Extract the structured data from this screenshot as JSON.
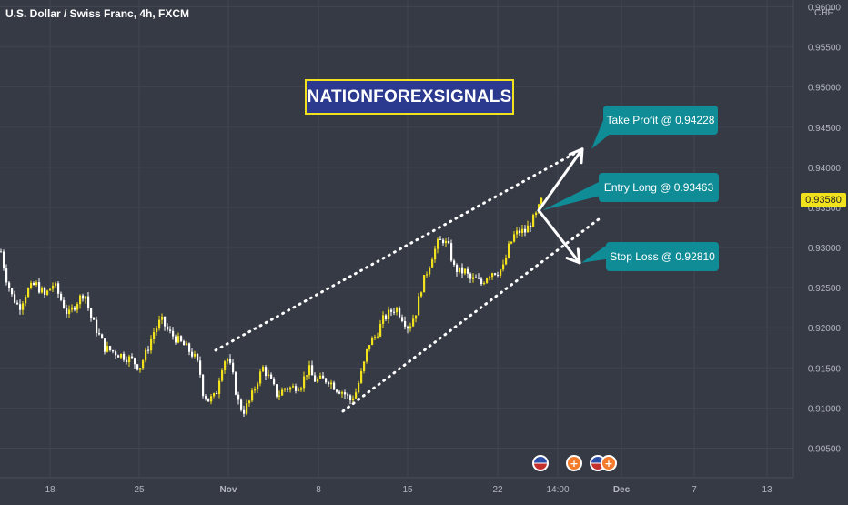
{
  "header": {
    "symbol_title": "U.S. Dollar / Swiss Franc, 4h, FXCM"
  },
  "watermark": {
    "brand": "NATIONFOREXSIGNALS"
  },
  "annotations": {
    "take_profit": "Take Profit @ 0.94228",
    "entry": "Entry Long @ 0.93463",
    "stop_loss": "Stop Loss @ 0.92810"
  },
  "price_axis": {
    "currency": "CHF",
    "last_price": "0.93580",
    "ticks": [
      "0.96000",
      "0.95500",
      "0.95000",
      "0.94500",
      "0.94000",
      "0.93500",
      "0.93000",
      "0.92500",
      "0.92000",
      "0.91500",
      "0.91000",
      "0.90500"
    ]
  },
  "time_axis": {
    "ticks": [
      "18",
      "25",
      "Nov",
      "8",
      "15",
      "22",
      "14:00",
      "Dec",
      "7",
      "13"
    ]
  },
  "colors": {
    "background": "#363a45",
    "candle_up": "#f2e21d",
    "candle_down": "#ffffff",
    "callout": "#0f8c96",
    "brand_bg": "#2b3a8f",
    "brand_border": "#f2e21d",
    "event_icon": "#f37b2b"
  },
  "icons": [
    "us-flag-icon",
    "event-plus-icon",
    "event-plus-icon",
    "us-flag-icon",
    "event-plus-icon"
  ],
  "chart_data": {
    "type": "candlestick",
    "title": "U.S. Dollar / Swiss Franc, 4h, FXCM",
    "ylim": [
      0.9025,
      0.9605
    ],
    "y_ticks": [
      0.905,
      0.91,
      0.915,
      0.92,
      0.925,
      0.93,
      0.935,
      0.94,
      0.945,
      0.95,
      0.955,
      0.96
    ],
    "x_tick_labels": [
      "18",
      "25",
      "Nov",
      "8",
      "15",
      "22",
      "14:00",
      "Dec",
      "7",
      "13"
    ],
    "grid": true,
    "last_price": 0.9358,
    "close_path": [
      [
        0,
        0.9295
      ],
      [
        5,
        0.9265
      ],
      [
        12,
        0.924
      ],
      [
        20,
        0.9225
      ],
      [
        28,
        0.9245
      ],
      [
        38,
        0.9255
      ],
      [
        48,
        0.924
      ],
      [
        58,
        0.9255
      ],
      [
        66,
        0.9235
      ],
      [
        74,
        0.9215
      ],
      [
        82,
        0.923
      ],
      [
        92,
        0.9245
      ],
      [
        98,
        0.9215
      ],
      [
        106,
        0.9195
      ],
      [
        114,
        0.9175
      ],
      [
        124,
        0.917
      ],
      [
        134,
        0.9165
      ],
      [
        144,
        0.916
      ],
      [
        152,
        0.915
      ],
      [
        160,
        0.917
      ],
      [
        168,
        0.9195
      ],
      [
        176,
        0.921
      ],
      [
        184,
        0.9195
      ],
      [
        194,
        0.9185
      ],
      [
        204,
        0.9175
      ],
      [
        212,
        0.9165
      ],
      [
        218,
        0.915
      ],
      [
        222,
        0.912
      ],
      [
        228,
        0.911
      ],
      [
        236,
        0.9115
      ],
      [
        242,
        0.915
      ],
      [
        248,
        0.9165
      ],
      [
        254,
        0.9145
      ],
      [
        260,
        0.911
      ],
      [
        266,
        0.9095
      ],
      [
        274,
        0.911
      ],
      [
        282,
        0.9135
      ],
      [
        288,
        0.915
      ],
      [
        296,
        0.9135
      ],
      [
        304,
        0.9115
      ],
      [
        312,
        0.9125
      ],
      [
        320,
        0.9125
      ],
      [
        330,
        0.913
      ],
      [
        338,
        0.915
      ],
      [
        344,
        0.9135
      ],
      [
        352,
        0.9135
      ],
      [
        360,
        0.9135
      ],
      [
        368,
        0.9125
      ],
      [
        376,
        0.912
      ],
      [
        384,
        0.911
      ],
      [
        390,
        0.912
      ],
      [
        398,
        0.915
      ],
      [
        404,
        0.918
      ],
      [
        412,
        0.919
      ],
      [
        420,
        0.921
      ],
      [
        428,
        0.922
      ],
      [
        434,
        0.9225
      ],
      [
        440,
        0.9215
      ],
      [
        448,
        0.92
      ],
      [
        456,
        0.922
      ],
      [
        462,
        0.925
      ],
      [
        468,
        0.927
      ],
      [
        474,
        0.929
      ],
      [
        480,
        0.9305
      ],
      [
        486,
        0.931
      ],
      [
        492,
        0.93
      ],
      [
        498,
        0.9275
      ],
      [
        504,
        0.927
      ],
      [
        510,
        0.927
      ],
      [
        516,
        0.926
      ],
      [
        522,
        0.926
      ],
      [
        528,
        0.9255
      ],
      [
        534,
        0.9265
      ],
      [
        540,
        0.927
      ],
      [
        546,
        0.927
      ],
      [
        552,
        0.9275
      ],
      [
        558,
        0.93
      ],
      [
        564,
        0.9315
      ],
      [
        570,
        0.932
      ],
      [
        576,
        0.932
      ],
      [
        582,
        0.933
      ],
      [
        588,
        0.934
      ],
      [
        594,
        0.9358
      ]
    ],
    "channel": {
      "upper": {
        "from": {
          "t": 237,
          "price": 0.9172
        },
        "to": {
          "t": 639,
          "price": 0.9422
        }
      },
      "lower": {
        "from": {
          "t": 377,
          "price": 0.9096
        },
        "to": {
          "t": 660,
          "price": 0.9337
        }
      }
    },
    "trade_levels": [
      {
        "label": "Entry Long",
        "price": 0.93463
      },
      {
        "label": "Take Profit",
        "price": 0.94228
      },
      {
        "label": "Stop Loss",
        "price": 0.9281
      }
    ]
  }
}
